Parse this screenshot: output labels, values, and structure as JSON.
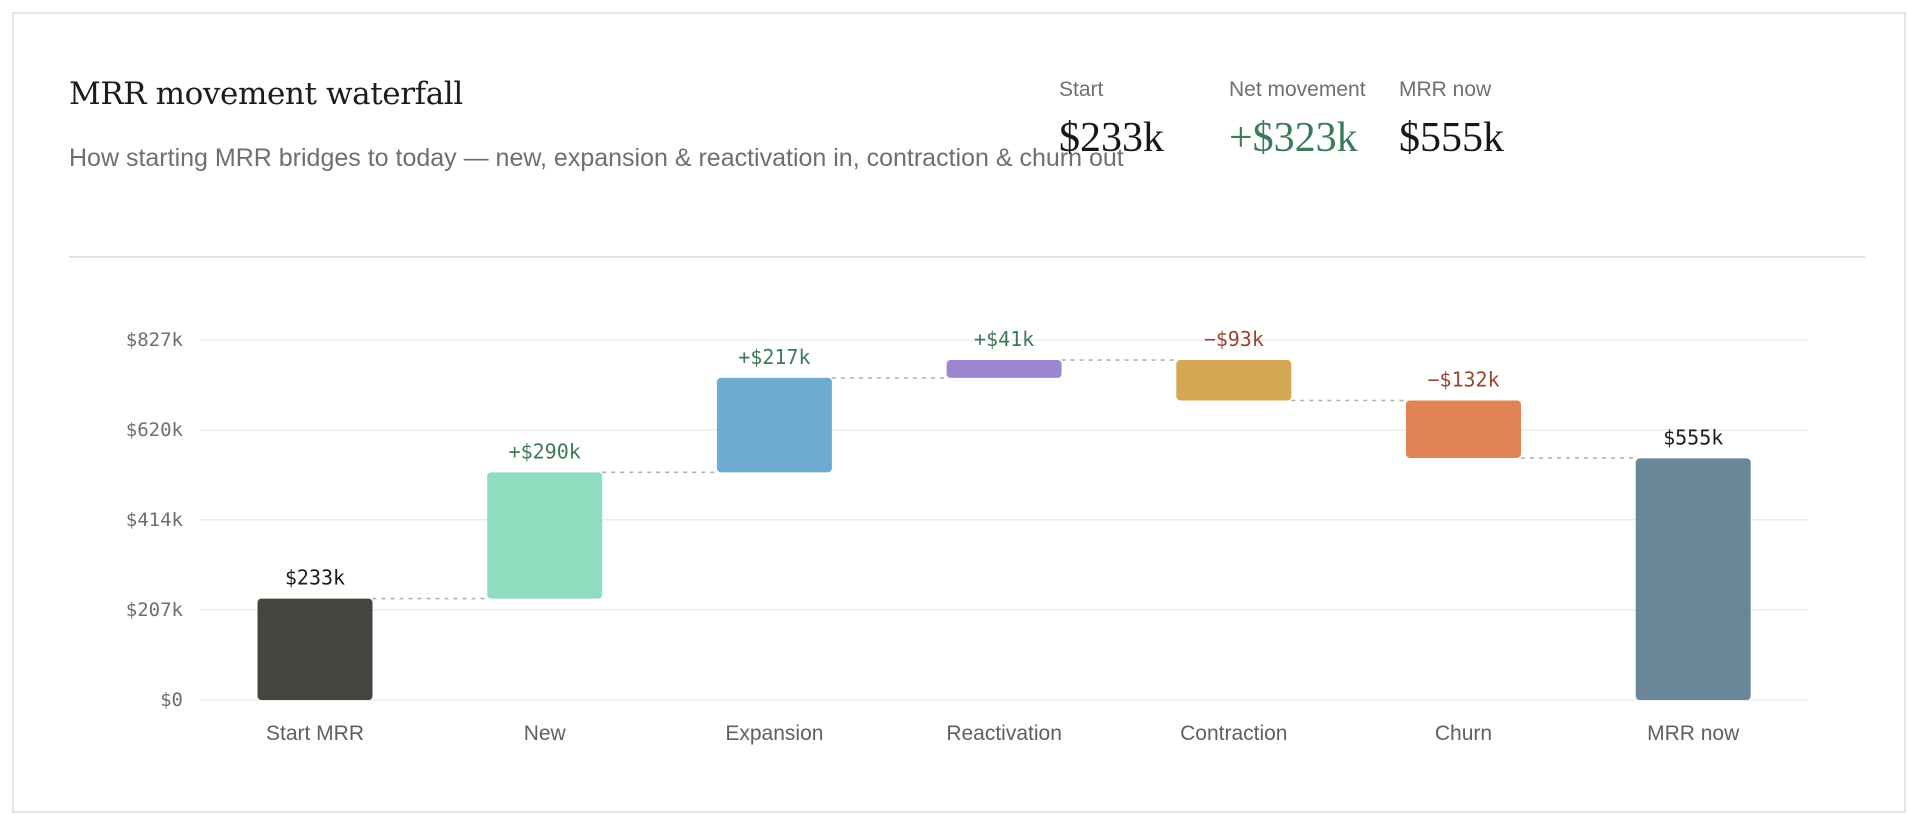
{
  "header": {
    "title": "MRR movement waterfall",
    "subtitle": "How starting MRR bridges to today — new, expansion & reactivation in, contraction & churn out"
  },
  "stats": [
    {
      "label": "Start",
      "value": "$233k",
      "tone": "neutral"
    },
    {
      "label": "Net movement",
      "value": "+$323k",
      "tone": "positive"
    },
    {
      "label": "MRR now",
      "value": "$555k",
      "tone": "neutral"
    }
  ],
  "colors": {
    "positive_text": "#3d7a5a",
    "negative_text": "#9a4433",
    "total_text": "#1c1c1a",
    "grid": "#ececea",
    "connector": "#b0b0ac"
  },
  "chart_data": {
    "type": "bar",
    "subtype": "waterfall",
    "ylim": [
      0,
      827
    ],
    "yticks": [
      0,
      207,
      414,
      620,
      827
    ],
    "ytick_labels": [
      "$0",
      "$207k",
      "$414k",
      "$620k",
      "$827k"
    ],
    "grid": true,
    "categories": [
      "Start MRR",
      "New",
      "Expansion",
      "Reactivation",
      "Contraction",
      "Churn",
      "MRR now"
    ],
    "steps": [
      {
        "category": "Start MRR",
        "kind": "total",
        "value": 233,
        "label": "$233k",
        "color": "#45443f"
      },
      {
        "category": "New",
        "kind": "delta",
        "value": 290,
        "label": "+$290k",
        "color": "#8fdcbf"
      },
      {
        "category": "Expansion",
        "kind": "delta",
        "value": 217,
        "label": "+$217k",
        "color": "#6faad0"
      },
      {
        "category": "Reactivation",
        "kind": "delta",
        "value": 41,
        "label": "+$41k",
        "color": "#9b87d2"
      },
      {
        "category": "Contraction",
        "kind": "delta",
        "value": -93,
        "label": "−$93k",
        "color": "#d3a753"
      },
      {
        "category": "Churn",
        "kind": "delta",
        "value": -132,
        "label": "−$132k",
        "color": "#e08456"
      },
      {
        "category": "MRR now",
        "kind": "total",
        "value": 555,
        "label": "$555k",
        "color": "#6a8799"
      }
    ]
  }
}
